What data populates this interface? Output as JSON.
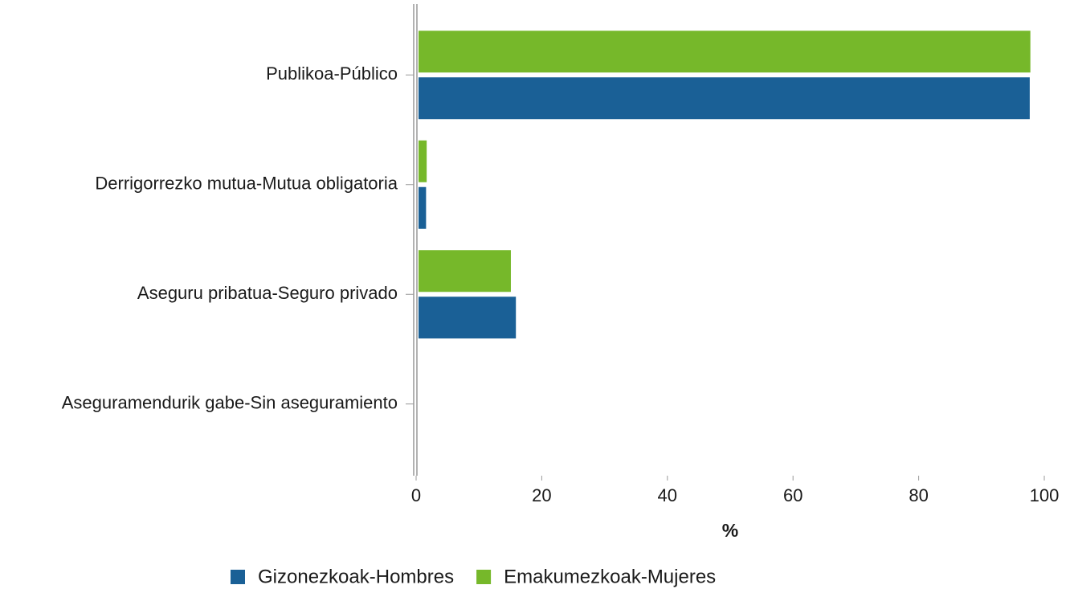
{
  "chart_data": {
    "type": "barh",
    "categories": [
      "Publikoa-Público",
      "Derrigorrezko mutua-Mutua obligatoria",
      "Aseguru pribatua-Seguro privado",
      "Aseguramendurik gabe-Sin aseguramiento"
    ],
    "series": [
      {
        "name": "Gizonezkoak-Hombres",
        "color": "#1a6096",
        "values": [
          97.3,
          1.2,
          15.5,
          0
        ]
      },
      {
        "name": "Emakumezkoak-Mujeres",
        "color": "#76b82a",
        "values": [
          97.4,
          1.3,
          14.7,
          0
        ]
      }
    ],
    "xlabel": "%",
    "xlim": [
      0,
      100
    ],
    "xticks": [
      0,
      20,
      40,
      60,
      80,
      100
    ],
    "grid": false,
    "legend": "bottom"
  }
}
